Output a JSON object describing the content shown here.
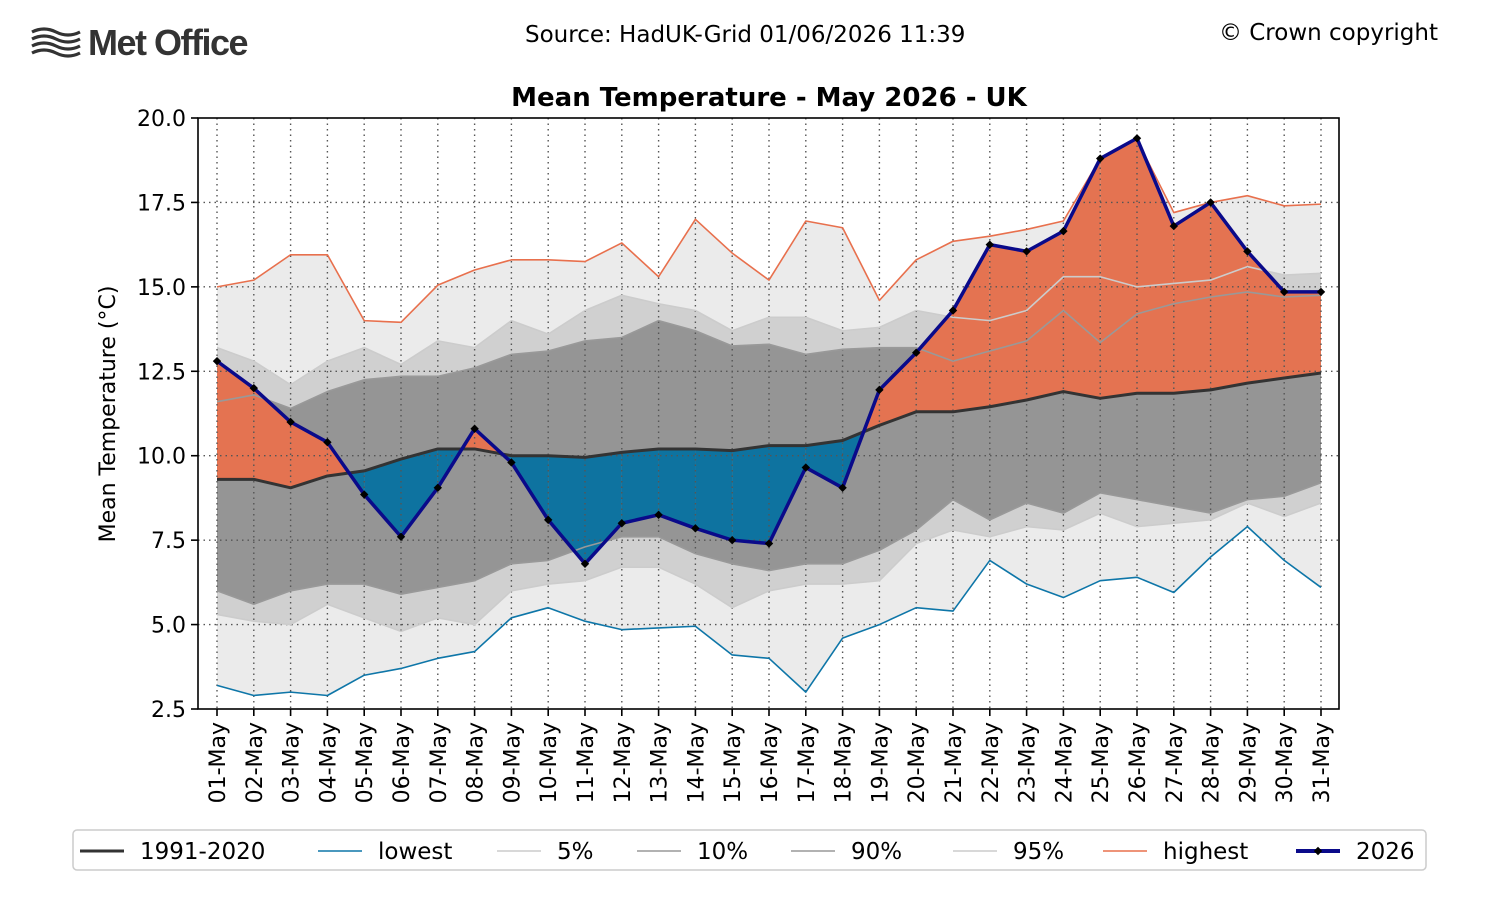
{
  "header": {
    "logo_text": "Met Office",
    "source": "Source: HadUK-Grid 01/06/2026 11:39",
    "copyright": "© Crown copyright"
  },
  "chart_data": {
    "type": "line",
    "title": "Mean Temperature - May 2026 - UK",
    "xlabel": "",
    "ylabel": "Mean Temperature (°C)",
    "ylim": [
      2.5,
      20.0
    ],
    "yticks": [
      2.5,
      5.0,
      7.5,
      10.0,
      12.5,
      15.0,
      17.5,
      20.0
    ],
    "ytick_labels": [
      "2.5",
      "5.0",
      "7.5",
      "10.0",
      "12.5",
      "15.0",
      "17.5",
      "20.0"
    ],
    "grid": true,
    "legend_position": "bottom",
    "categories": [
      "01-May",
      "02-May",
      "03-May",
      "04-May",
      "05-May",
      "06-May",
      "07-May",
      "08-May",
      "09-May",
      "10-May",
      "11-May",
      "12-May",
      "13-May",
      "14-May",
      "15-May",
      "16-May",
      "17-May",
      "18-May",
      "19-May",
      "20-May",
      "21-May",
      "22-May",
      "23-May",
      "24-May",
      "25-May",
      "26-May",
      "27-May",
      "28-May",
      "29-May",
      "30-May",
      "31-May"
    ],
    "series": [
      {
        "name": "lowest",
        "color": "#0e76a8",
        "values": [
          3.2,
          2.9,
          3.0,
          2.9,
          3.5,
          3.7,
          4.0,
          4.2,
          5.2,
          5.5,
          5.1,
          4.85,
          4.9,
          4.95,
          4.1,
          4.0,
          3.0,
          4.6,
          5.0,
          5.5,
          5.4,
          6.9,
          6.2,
          5.8,
          6.3,
          6.4,
          5.95,
          7.0,
          7.9,
          6.9,
          6.1
        ]
      },
      {
        "name": "5%",
        "color": "#cccccc",
        "values": [
          5.3,
          5.1,
          5.0,
          5.6,
          5.2,
          4.8,
          5.2,
          5.0,
          6.0,
          6.2,
          6.3,
          6.7,
          6.7,
          6.2,
          5.5,
          6.0,
          6.2,
          6.2,
          6.3,
          7.4,
          7.8,
          7.6,
          7.9,
          7.8,
          8.3,
          7.9,
          8.0,
          8.1,
          8.6,
          8.2,
          8.6
        ]
      },
      {
        "name": "10%",
        "color": "#999999",
        "values": [
          6.0,
          5.6,
          6.0,
          6.2,
          6.2,
          5.9,
          6.1,
          6.3,
          6.8,
          6.9,
          7.3,
          7.6,
          7.6,
          7.1,
          6.8,
          6.6,
          6.8,
          6.8,
          7.2,
          7.8,
          8.7,
          8.1,
          8.6,
          8.3,
          8.9,
          8.7,
          8.5,
          8.3,
          8.7,
          8.8,
          9.2
        ]
      },
      {
        "name": "1991-2020",
        "color": "#333333",
        "values": [
          9.3,
          9.3,
          9.05,
          9.4,
          9.55,
          9.9,
          10.2,
          10.2,
          10.0,
          10.0,
          9.95,
          10.1,
          10.2,
          10.2,
          10.15,
          10.3,
          10.3,
          10.45,
          10.9,
          11.3,
          11.3,
          11.45,
          11.65,
          11.9,
          11.7,
          11.85,
          11.85,
          11.95,
          12.15,
          12.3,
          12.45
        ]
      },
      {
        "name": "90%",
        "color": "#999999",
        "values": [
          11.6,
          11.8,
          11.4,
          11.9,
          12.25,
          12.35,
          12.35,
          12.6,
          13.0,
          13.1,
          13.4,
          13.5,
          14.0,
          13.7,
          13.25,
          13.3,
          13.0,
          13.15,
          13.2,
          13.2,
          12.8,
          13.1,
          13.4,
          14.3,
          13.35,
          14.2,
          14.5,
          14.7,
          14.85,
          14.7,
          14.75
        ]
      },
      {
        "name": "95%",
        "color": "#cccccc",
        "values": [
          13.2,
          12.8,
          12.1,
          12.8,
          13.2,
          12.7,
          13.4,
          13.2,
          14.0,
          13.6,
          14.3,
          14.75,
          14.5,
          14.3,
          13.7,
          14.1,
          14.1,
          13.7,
          13.8,
          14.3,
          14.1,
          14.0,
          14.3,
          15.3,
          15.3,
          15.0,
          15.1,
          15.2,
          15.6,
          15.35,
          15.4
        ]
      },
      {
        "name": "highest",
        "color": "#e8704d",
        "values": [
          15.0,
          15.2,
          15.95,
          15.95,
          14.0,
          13.95,
          15.05,
          15.5,
          15.8,
          15.8,
          15.75,
          16.3,
          15.3,
          17.0,
          16.0,
          15.2,
          16.95,
          16.75,
          14.6,
          15.8,
          16.35,
          16.5,
          16.7,
          16.95,
          18.8,
          19.35,
          17.2,
          17.5,
          17.7,
          17.4,
          17.45
        ]
      },
      {
        "name": "2026",
        "color": "#0a0a8a",
        "values": [
          12.8,
          12.0,
          11.0,
          10.4,
          8.85,
          7.6,
          9.05,
          10.8,
          9.8,
          8.1,
          6.8,
          8.0,
          8.25,
          7.85,
          7.5,
          7.4,
          9.65,
          9.05,
          11.95,
          13.05,
          14.3,
          16.25,
          16.05,
          16.65,
          18.8,
          19.4,
          16.8,
          17.5,
          16.05,
          14.85,
          14.85
        ]
      }
    ]
  },
  "legend": [
    {
      "label": "1991-2020",
      "color": "#333333",
      "width": 3,
      "marker": false
    },
    {
      "label": "lowest",
      "color": "#0e76a8",
      "width": 1.6,
      "marker": false
    },
    {
      "label": "5%",
      "color": "#cccccc",
      "width": 1.6,
      "marker": false
    },
    {
      "label": "10%",
      "color": "#999999",
      "width": 1.6,
      "marker": false
    },
    {
      "label": "90%",
      "color": "#999999",
      "width": 1.6,
      "marker": false
    },
    {
      "label": "95%",
      "color": "#cccccc",
      "width": 1.6,
      "marker": false
    },
    {
      "label": "highest",
      "color": "#e8704d",
      "width": 1.6,
      "marker": false
    },
    {
      "label": "2026",
      "color": "#0a0a8a",
      "width": 4,
      "marker": true
    }
  ],
  "colors": {
    "band_outer": "#ebebeb",
    "band_5_10": "#d0d0d0",
    "band_middle": "#959595",
    "above_normal_fill": "#e47351",
    "below_normal_fill": "#0e73a0",
    "grid": "#555555"
  }
}
